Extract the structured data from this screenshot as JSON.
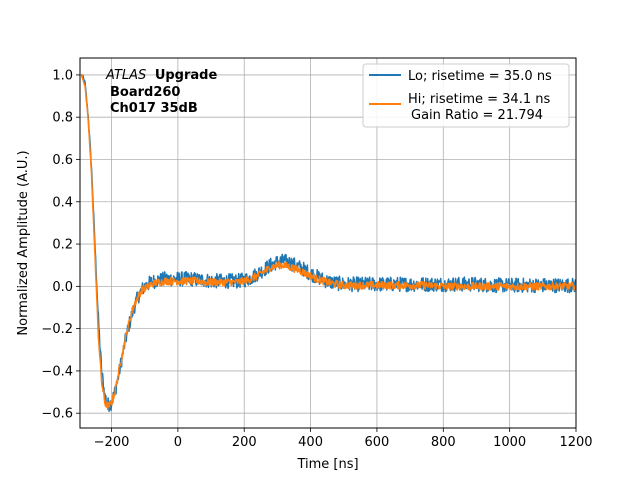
{
  "chart_data": {
    "type": "line",
    "title": "",
    "xlabel": "Time [ns]",
    "ylabel": "Normalized Amplitude (A.U.)",
    "xlim": [
      -295,
      1200
    ],
    "ylim": [
      -0.67,
      1.08
    ],
    "xticks": [
      -200,
      0,
      200,
      400,
      600,
      800,
      1000,
      1200
    ],
    "yticks": [
      -0.6,
      -0.4,
      -0.2,
      0.0,
      0.2,
      0.4,
      0.6,
      0.8,
      1.0
    ],
    "xtick_labels": [
      "−200",
      "0",
      "200",
      "400",
      "600",
      "800",
      "1000",
      "1200"
    ],
    "ytick_labels": [
      "−0.6",
      "−0.4",
      "−0.2",
      "0.0",
      "0.2",
      "0.4",
      "0.6",
      "0.8",
      "1.0"
    ],
    "grid": true,
    "legend_position": "top-right",
    "annotation": {
      "italic_part": "ATLAS",
      "bold_part": "Upgrade",
      "line2": "Board260",
      "line3": "Ch017 35dB"
    },
    "gain_ratio_text": "Gain Ratio = 21.794",
    "series": [
      {
        "name": "Lo; risetime = 35.0 ns",
        "color": "#1f77b4",
        "noise_amplitude": 0.035,
        "x": [
          -290,
          -280,
          -270,
          -260,
          -250,
          -240,
          -230,
          -220,
          -210,
          -200,
          -190,
          -180,
          -170,
          -160,
          -150,
          -140,
          -130,
          -120,
          -110,
          -100,
          -90,
          -80,
          -70,
          -60,
          -50,
          -40,
          -30,
          -20,
          -10,
          0,
          20,
          40,
          60,
          80,
          100,
          120,
          140,
          160,
          180,
          200,
          220,
          240,
          260,
          280,
          300,
          320,
          340,
          360,
          380,
          400,
          420,
          440,
          460,
          480,
          500,
          550,
          600,
          650,
          700,
          750,
          800,
          850,
          900,
          950,
          1000,
          1050,
          1100,
          1150,
          1200
        ],
        "y": [
          1.0,
          0.96,
          0.8,
          0.55,
          0.2,
          -0.15,
          -0.4,
          -0.52,
          -0.56,
          -0.55,
          -0.5,
          -0.43,
          -0.35,
          -0.27,
          -0.2,
          -0.14,
          -0.09,
          -0.05,
          -0.02,
          0.0,
          0.01,
          0.02,
          0.025,
          0.03,
          0.03,
          0.035,
          0.035,
          0.035,
          0.035,
          0.035,
          0.035,
          0.035,
          0.03,
          0.03,
          0.025,
          0.025,
          0.025,
          0.025,
          0.025,
          0.03,
          0.04,
          0.06,
          0.08,
          0.1,
          0.115,
          0.12,
          0.11,
          0.095,
          0.08,
          0.06,
          0.045,
          0.03,
          0.02,
          0.015,
          0.01,
          0.01,
          0.01,
          0.01,
          0.01,
          0.01,
          0.01,
          0.01,
          0.01,
          0.005,
          0.005,
          0.005,
          0.005,
          0.005,
          0.005
        ]
      },
      {
        "name": "Hi; risetime = 34.1 ns",
        "color": "#ff7f0e",
        "noise_amplitude": 0.018,
        "x": [
          -290,
          -280,
          -270,
          -260,
          -250,
          -240,
          -230,
          -220,
          -210,
          -200,
          -190,
          -180,
          -170,
          -160,
          -150,
          -140,
          -130,
          -120,
          -110,
          -100,
          -90,
          -80,
          -70,
          -60,
          -50,
          -40,
          -30,
          -20,
          -10,
          0,
          20,
          40,
          60,
          80,
          100,
          120,
          140,
          160,
          180,
          200,
          220,
          240,
          260,
          280,
          300,
          320,
          340,
          360,
          380,
          400,
          420,
          440,
          460,
          480,
          500,
          550,
          600,
          650,
          700,
          750,
          800,
          850,
          900,
          950,
          1000,
          1050,
          1100,
          1150,
          1200
        ],
        "y": [
          1.0,
          0.95,
          0.78,
          0.52,
          0.15,
          -0.22,
          -0.45,
          -0.55,
          -0.57,
          -0.55,
          -0.5,
          -0.42,
          -0.34,
          -0.26,
          -0.19,
          -0.13,
          -0.08,
          -0.05,
          -0.02,
          -0.01,
          0.0,
          0.01,
          0.015,
          0.02,
          0.02,
          0.025,
          0.025,
          0.025,
          0.025,
          0.025,
          0.025,
          0.025,
          0.025,
          0.02,
          0.02,
          0.02,
          0.02,
          0.02,
          0.02,
          0.025,
          0.035,
          0.05,
          0.07,
          0.09,
          0.1,
          0.1,
          0.09,
          0.08,
          0.065,
          0.05,
          0.035,
          0.025,
          0.015,
          0.01,
          0.005,
          0.005,
          0.005,
          0.005,
          0.005,
          0.005,
          0.0,
          0.0,
          0.0,
          0.0,
          0.0,
          0.0,
          0.0,
          0.0,
          0.0
        ]
      }
    ]
  }
}
